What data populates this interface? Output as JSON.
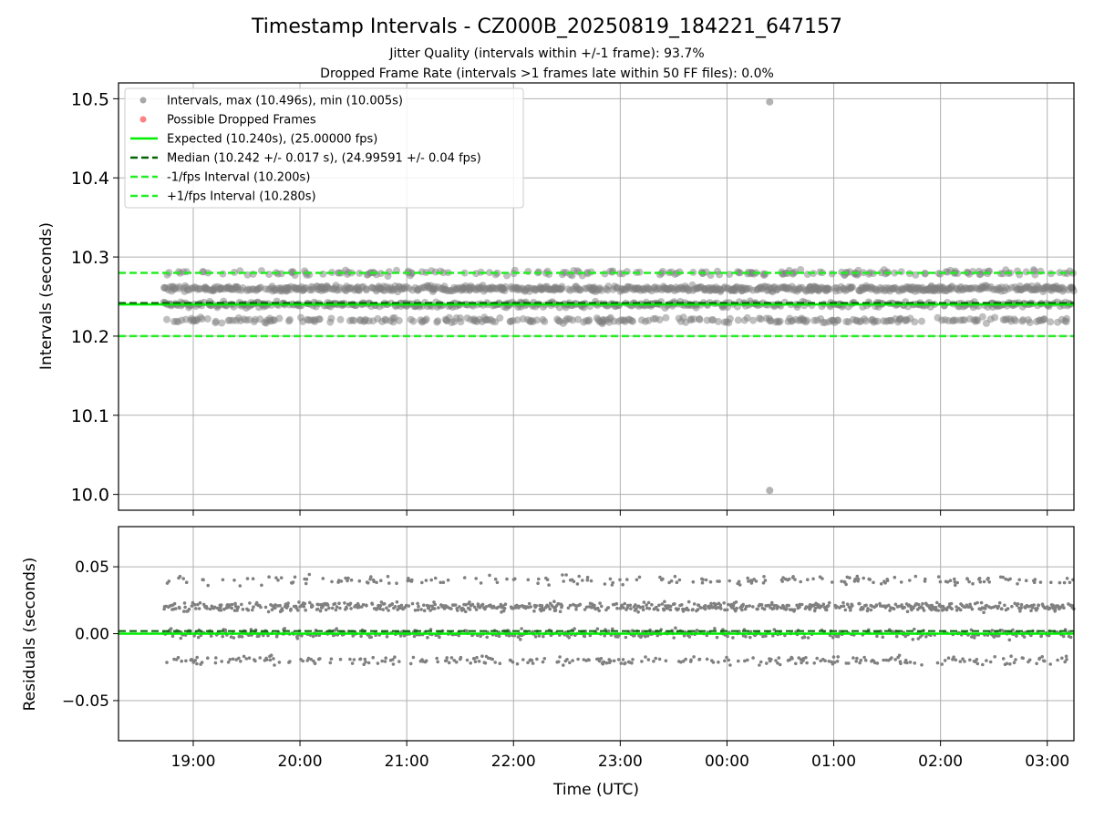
{
  "figure": {
    "title": "Timestamp Intervals - CZ000B_20250819_184221_647157",
    "subtitle_1": "Jitter Quality (intervals within +/-1 frame): 93.7%",
    "subtitle_2": "Dropped Frame Rate (intervals >1 frames late within 50 FF files): 0.0%"
  },
  "colors": {
    "points": "#808080",
    "dropped": "#ff6b6b",
    "expected": "#00ee00",
    "median": "#006400",
    "fps_interval": "#22ee22",
    "grid": "#b0b0b0"
  },
  "chart_data": [
    {
      "type": "scatter",
      "ylabel": "Intervals (seconds)",
      "ylim": [
        9.98,
        10.52
      ],
      "yticks": [
        "10.0",
        "10.1",
        "10.2",
        "10.3",
        "10.4",
        "10.5"
      ],
      "ytick_values": [
        10.0,
        10.1,
        10.2,
        10.3,
        10.4,
        10.5
      ],
      "xlim_hours": [
        -0.7,
        8.25
      ],
      "grid": true,
      "legend_position": "top-left",
      "legend": [
        {
          "label": "Intervals, max (10.496s), min (10.005s)",
          "kind": "point",
          "color": "#999999"
        },
        {
          "label": "Possible Dropped Frames",
          "kind": "point",
          "color": "#ff6b6b"
        },
        {
          "label": "Expected (10.240s), (25.00000 fps)",
          "kind": "solid",
          "color": "#00ee00"
        },
        {
          "label": "Median (10.242 +/- 0.017 s), (24.99591 +/- 0.04 fps)",
          "kind": "dashed",
          "color": "#006400"
        },
        {
          "label": "-1/fps Interval (10.200s)",
          "kind": "dashed",
          "color": "#22ee22"
        },
        {
          "label": "+1/fps Interval (10.280s)",
          "kind": "dashed",
          "color": "#22ee22"
        }
      ],
      "expected": 10.24,
      "median": 10.242,
      "minus_fps": 10.2,
      "plus_fps": 10.28,
      "bands": [
        10.22,
        10.24,
        10.26,
        10.28
      ],
      "x_range_hours": [
        -0.28,
        8.25
      ],
      "outliers": [
        {
          "x_hours": 5.4,
          "y": 10.496
        },
        {
          "x_hours": 5.4,
          "y": 10.005
        }
      ]
    },
    {
      "type": "scatter",
      "ylabel": "Residuals (seconds)",
      "xlabel": "Time (UTC)",
      "ylim": [
        -0.08,
        0.08
      ],
      "yticks": [
        "0.05",
        "0.00",
        "−0.05"
      ],
      "ytick_values": [
        0.05,
        0.0,
        -0.05
      ],
      "xlim_hours": [
        -0.7,
        8.25
      ],
      "xticks": [
        "19:00",
        "20:00",
        "21:00",
        "22:00",
        "23:00",
        "00:00",
        "01:00",
        "02:00",
        "03:00"
      ],
      "xtick_values_hours": [
        0,
        1,
        2,
        3,
        4,
        5,
        6,
        7,
        8
      ],
      "grid": true,
      "expected": 0.0,
      "median": 0.002,
      "bands": [
        -0.02,
        0.0,
        0.02,
        0.04
      ],
      "x_range_hours": [
        -0.28,
        8.25
      ]
    }
  ]
}
